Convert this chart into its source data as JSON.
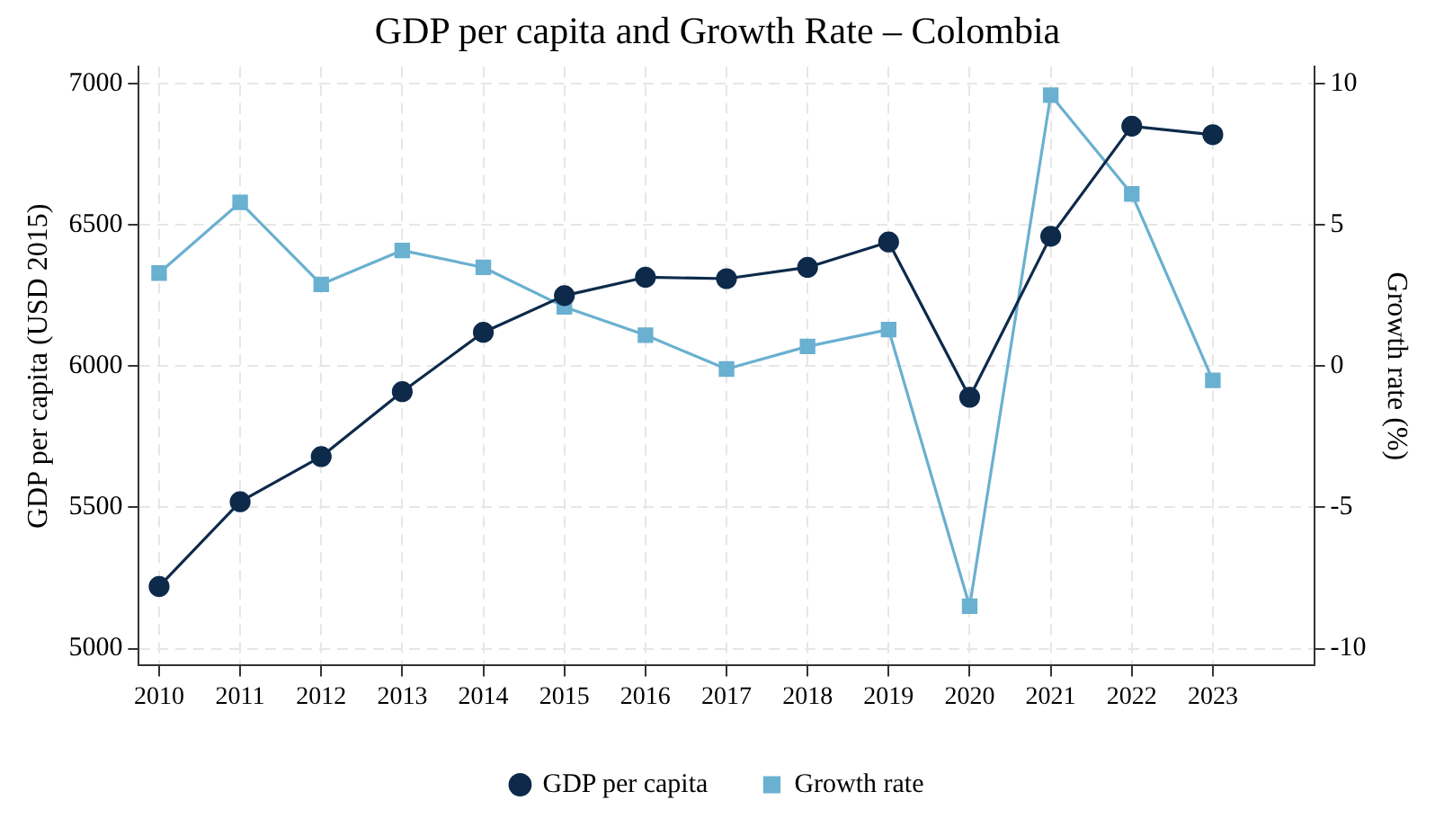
{
  "chart_data": {
    "type": "line",
    "title": "GDP per capita and Growth Rate – Colombia",
    "ylabel": "GDP per capita (USD 2015)",
    "y2label": "Growth rate (%)",
    "x": [
      2010,
      2011,
      2012,
      2013,
      2014,
      2015,
      2016,
      2017,
      2018,
      2019,
      2020,
      2021,
      2022,
      2023
    ],
    "xlim": [
      2009.75,
      2024.25
    ],
    "xticks": [
      2010,
      2011,
      2012,
      2013,
      2014,
      2015,
      2016,
      2017,
      2018,
      2019,
      2020,
      2021,
      2022,
      2023
    ],
    "ylim": [
      4940,
      7060
    ],
    "yticks": [
      5000,
      5500,
      6000,
      6500,
      7000
    ],
    "y2lim": [
      -10.6,
      10.6
    ],
    "y2ticks": [
      -10,
      -5,
      0,
      5,
      10
    ],
    "series": [
      {
        "name": "GDP per capita",
        "color": "#0d2a4a",
        "marker": "circle",
        "values": [
          5220,
          5520,
          5680,
          5910,
          6120,
          6250,
          6315,
          6310,
          6350,
          6440,
          5890,
          6460,
          6850,
          6820
        ]
      },
      {
        "name": "Growth rate",
        "color": "#6ab0d0",
        "marker": "square",
        "axis": "y2",
        "values": [
          3.3,
          5.8,
          2.9,
          4.1,
          3.5,
          2.1,
          1.1,
          -0.1,
          0.7,
          1.3,
          -8.5,
          9.6,
          6.1,
          -0.5
        ]
      }
    ],
    "grid": true,
    "legend": "bottom",
    "line_style": "solid"
  }
}
